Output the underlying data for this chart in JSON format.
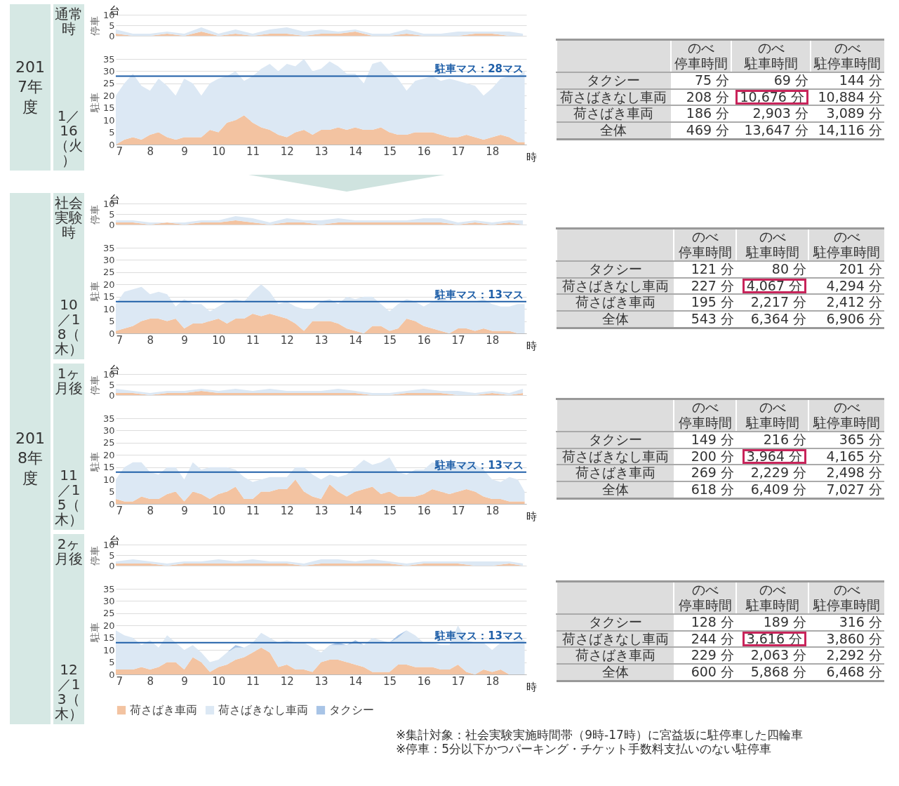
{
  "chart_data": [
    {
      "type": "area",
      "title": "台",
      "ylabel": "停車",
      "annotations": [
        "2017年度",
        "通常時",
        "1／16（火）"
      ],
      "x": [
        7,
        7.5,
        8,
        8.5,
        9,
        9.5,
        10,
        10.5,
        11,
        11.5,
        12,
        12.5,
        13,
        13.5,
        14,
        14.5,
        15,
        15.5,
        16,
        16.5,
        17,
        17.5,
        18,
        18.5,
        18.9
      ],
      "xlim": [
        7,
        19
      ],
      "ylim": [
        0,
        10
      ],
      "yticks": [
        0,
        5,
        10
      ],
      "tick_labels": "y",
      "grid": "y",
      "stacked": true,
      "series": [
        {
          "color": "#f3c3a1",
          "values": [
            1,
            0,
            0,
            1,
            0,
            2,
            0,
            1,
            0,
            1,
            1,
            0,
            1,
            1,
            2,
            0,
            0,
            1,
            0,
            0,
            0,
            1,
            1,
            0,
            0
          ]
        },
        {
          "color": "#dce8f4",
          "values": [
            2,
            1,
            1,
            1,
            1,
            2,
            1,
            2,
            1,
            2,
            3,
            2,
            2,
            1,
            1,
            1,
            1,
            2,
            1,
            1,
            2,
            1,
            1,
            2,
            1
          ]
        }
      ]
    },
    {
      "type": "area",
      "ylabel": "駐車",
      "xlabel": "時",
      "x": [
        7,
        7.25,
        7.5,
        7.75,
        8,
        8.25,
        8.5,
        8.75,
        9,
        9.25,
        9.5,
        9.75,
        10,
        10.25,
        10.5,
        10.75,
        11,
        11.25,
        11.5,
        11.75,
        12,
        12.25,
        12.5,
        12.75,
        13,
        13.25,
        13.5,
        13.75,
        14,
        14.25,
        14.5,
        14.75,
        15,
        15.25,
        15.5,
        15.75,
        16,
        16.25,
        16.5,
        16.75,
        17,
        17.25,
        17.5,
        17.75,
        18,
        18.25,
        18.5,
        18.75,
        18.95
      ],
      "xlim": [
        7,
        19
      ],
      "xticks": [
        7,
        8,
        9,
        10,
        11,
        12,
        13,
        14,
        15,
        16,
        17,
        18
      ],
      "ylim": [
        0,
        35
      ],
      "yticks": [
        0,
        5,
        10,
        15,
        20,
        25,
        30,
        35
      ],
      "grid": "y",
      "stacked": true,
      "ref_lines": [
        {
          "axis": "y",
          "value": 28,
          "label": "駐車マス：28マス",
          "color": "#1f5fa8"
        }
      ],
      "series": [
        {
          "color": "#f3c3a1",
          "values": [
            0,
            2,
            3,
            2,
            4,
            5,
            3,
            2,
            3,
            3,
            3,
            6,
            5,
            9,
            10,
            12,
            9,
            7,
            6,
            4,
            3,
            5,
            6,
            4,
            6,
            6,
            7,
            6,
            7,
            6,
            6,
            7,
            5,
            4,
            4,
            5,
            5,
            5,
            4,
            3,
            3,
            4,
            3,
            2,
            3,
            4,
            3,
            1,
            1
          ]
        },
        {
          "color": "#dce8f4",
          "values": [
            20,
            23,
            26,
            22,
            18,
            22,
            21,
            18,
            24,
            22,
            17,
            19,
            22,
            19,
            20,
            14,
            19,
            24,
            27,
            26,
            30,
            27,
            29,
            26,
            25,
            28,
            25,
            23,
            22,
            19,
            27,
            27,
            25,
            23,
            18,
            21,
            22,
            23,
            22,
            24,
            23,
            21,
            21,
            18,
            20,
            23,
            25,
            27,
            29
          ]
        }
      ]
    },
    {
      "type": "other",
      "categories": [
        "のべ停車時間",
        "のべ駐車時間",
        "のべ駐停車時間"
      ],
      "y_categories": [
        "タクシー",
        "荷さばきなし車両",
        "荷さばき車両",
        "全体"
      ],
      "cell_labels": [
        [
          "75 分",
          "69 分",
          "144 分"
        ],
        [
          "208 分",
          "10,676 分",
          "10,884 分"
        ],
        [
          "186 分",
          "2,903 分",
          "3,089 分"
        ],
        [
          "469 分",
          "13,647 分",
          "14,116 分"
        ]
      ]
    },
    {
      "type": "area",
      "title": "台",
      "ylabel": "停車",
      "annotations": [
        "2018年度",
        "社会実験時",
        "10／18（木）"
      ],
      "x": [
        7,
        7.5,
        8,
        8.5,
        9,
        9.5,
        10,
        10.5,
        11,
        11.5,
        12,
        12.5,
        13,
        13.5,
        14,
        14.5,
        15,
        15.5,
        16,
        16.5,
        17,
        17.5,
        18,
        18.5,
        18.9
      ],
      "xlim": [
        7,
        19
      ],
      "ylim": [
        0,
        10
      ],
      "yticks": [
        0,
        5,
        10
      ],
      "tick_labels": "y",
      "grid": "y",
      "stacked": true,
      "series": [
        {
          "color": "#f3c3a1",
          "values": [
            1,
            1,
            0,
            1,
            0,
            1,
            1,
            2,
            1,
            0,
            1,
            1,
            0,
            1,
            1,
            1,
            1,
            1,
            1,
            1,
            0,
            1,
            0,
            1,
            0
          ]
        },
        {
          "color": "#dce8f4",
          "values": [
            1,
            1,
            1,
            0,
            1,
            1,
            1,
            2,
            2,
            1,
            2,
            1,
            2,
            2,
            1,
            1,
            1,
            1,
            2,
            2,
            1,
            1,
            1,
            1,
            2
          ]
        }
      ]
    },
    {
      "type": "area",
      "ylabel": "駐車",
      "xlabel": "時",
      "x": [
        7,
        7.25,
        7.5,
        7.75,
        8,
        8.25,
        8.5,
        8.75,
        9,
        9.25,
        9.5,
        9.75,
        10,
        10.25,
        10.5,
        10.75,
        11,
        11.25,
        11.5,
        11.75,
        12,
        12.25,
        12.5,
        12.75,
        13,
        13.25,
        13.5,
        13.75,
        14,
        14.25,
        14.5,
        14.75,
        15,
        15.25,
        15.5,
        15.75,
        16,
        16.25,
        16.5,
        16.75,
        17,
        17.25,
        17.5,
        17.75,
        18,
        18.25,
        18.5,
        18.75,
        18.95
      ],
      "xlim": [
        7,
        19
      ],
      "xticks": [
        7,
        8,
        9,
        10,
        11,
        12,
        13,
        14,
        15,
        16,
        17,
        18
      ],
      "ylim": [
        0,
        35
      ],
      "yticks": [
        0,
        5,
        10,
        15,
        20,
        25,
        30,
        35
      ],
      "grid": "y",
      "stacked": true,
      "ref_lines": [
        {
          "axis": "y",
          "value": 13,
          "label": "駐車マス：13マス",
          "color": "#1f5fa8"
        }
      ],
      "series": [
        {
          "color": "#f3c3a1",
          "values": [
            1,
            2,
            3,
            5,
            6,
            6,
            5,
            6,
            2,
            4,
            4,
            5,
            6,
            4,
            6,
            6,
            8,
            7,
            8,
            7,
            6,
            4,
            1,
            5,
            5,
            5,
            4,
            2,
            1,
            0,
            3,
            3,
            1,
            2,
            6,
            5,
            3,
            2,
            1,
            0,
            2,
            2,
            1,
            2,
            1,
            1,
            1,
            0,
            0
          ]
        },
        {
          "color": "#dce8f4",
          "values": [
            11,
            15,
            15,
            14,
            10,
            11,
            11,
            5,
            12,
            8,
            8,
            4,
            5,
            9,
            8,
            7,
            9,
            13,
            9,
            5,
            7,
            7,
            9,
            5,
            8,
            9,
            8,
            13,
            13,
            15,
            12,
            9,
            8,
            10,
            8,
            8,
            8,
            11,
            13,
            13,
            11,
            11,
            12,
            12,
            11,
            10,
            10,
            12,
            12
          ]
        }
      ]
    },
    {
      "type": "other",
      "categories": [
        "のべ停車時間",
        "のべ駐車時間",
        "のべ駐停車時間"
      ],
      "y_categories": [
        "タクシー",
        "荷さばきなし車両",
        "荷さばき車両",
        "全体"
      ],
      "cell_labels": [
        [
          "121 分",
          "80 分",
          "201 分"
        ],
        [
          "227 分",
          "4,067 分",
          "4,294 分"
        ],
        [
          "195 分",
          "2,217 分",
          "2,412 分"
        ],
        [
          "543 分",
          "6,364 分",
          "6,906 分"
        ]
      ]
    },
    {
      "type": "area",
      "title": "台",
      "ylabel": "停車",
      "annotations": [
        "1ヶ月後",
        "11／15（木）"
      ],
      "x": [
        7,
        7.5,
        8,
        8.5,
        9,
        9.5,
        10,
        10.5,
        11,
        11.5,
        12,
        12.5,
        13,
        13.5,
        14,
        14.5,
        15,
        15.5,
        16,
        16.5,
        17,
        17.5,
        18,
        18.5,
        18.9
      ],
      "xlim": [
        7,
        19
      ],
      "ylim": [
        0,
        10
      ],
      "yticks": [
        0,
        5,
        10
      ],
      "tick_labels": "y",
      "grid": "y",
      "stacked": true,
      "series": [
        {
          "color": "#f3c3a1",
          "values": [
            1,
            1,
            0,
            1,
            1,
            2,
            1,
            1,
            1,
            1,
            1,
            1,
            1,
            1,
            1,
            0,
            0,
            1,
            1,
            1,
            0,
            0,
            1,
            0,
            1
          ]
        },
        {
          "color": "#dce8f4",
          "values": [
            2,
            1,
            1,
            1,
            1,
            1,
            1,
            2,
            1,
            2,
            1,
            1,
            1,
            2,
            1,
            1,
            1,
            1,
            2,
            1,
            2,
            1,
            1,
            1,
            2
          ]
        }
      ]
    },
    {
      "type": "area",
      "ylabel": "駐車",
      "xlabel": "時",
      "x": [
        7,
        7.25,
        7.5,
        7.75,
        8,
        8.25,
        8.5,
        8.75,
        9,
        9.25,
        9.5,
        9.75,
        10,
        10.25,
        10.5,
        10.75,
        11,
        11.25,
        11.5,
        11.75,
        12,
        12.25,
        12.5,
        12.75,
        13,
        13.25,
        13.5,
        13.75,
        14,
        14.25,
        14.5,
        14.75,
        15,
        15.25,
        15.5,
        15.75,
        16,
        16.25,
        16.5,
        16.75,
        17,
        17.25,
        17.5,
        17.75,
        18,
        18.25,
        18.5,
        18.75,
        18.95
      ],
      "xlim": [
        7,
        19
      ],
      "xticks": [
        7,
        8,
        9,
        10,
        11,
        12,
        13,
        14,
        15,
        16,
        17,
        18
      ],
      "ylim": [
        0,
        35
      ],
      "yticks": [
        0,
        5,
        10,
        15,
        20,
        25,
        30,
        35
      ],
      "grid": "y",
      "stacked": true,
      "ref_lines": [
        {
          "axis": "y",
          "value": 13,
          "label": "駐車マス：13マス",
          "color": "#1f5fa8"
        }
      ],
      "series": [
        {
          "color": "#f3c3a1",
          "values": [
            2,
            1,
            1,
            3,
            2,
            2,
            4,
            5,
            1,
            5,
            4,
            2,
            4,
            5,
            7,
            2,
            2,
            5,
            5,
            6,
            6,
            10,
            5,
            3,
            2,
            8,
            5,
            3,
            5,
            6,
            7,
            4,
            5,
            3,
            3,
            3,
            4,
            6,
            5,
            4,
            5,
            6,
            5,
            3,
            2,
            2,
            1,
            1,
            1
          ]
        },
        {
          "color": "#dce8f4",
          "values": [
            8,
            14,
            16,
            14,
            11,
            10,
            11,
            10,
            9,
            12,
            10,
            13,
            11,
            10,
            7,
            9,
            7,
            5,
            6,
            5,
            5,
            5,
            10,
            9,
            8,
            4,
            6,
            9,
            10,
            12,
            9,
            13,
            14,
            10,
            9,
            11,
            10,
            11,
            11,
            12,
            11,
            11,
            11,
            11,
            8,
            7,
            10,
            9,
            4
          ]
        }
      ]
    },
    {
      "type": "other",
      "categories": [
        "のべ停車時間",
        "のべ駐車時間",
        "のべ駐停車時間"
      ],
      "y_categories": [
        "タクシー",
        "荷さばきなし車両",
        "荷さばき車両",
        "全体"
      ],
      "cell_labels": [
        [
          "149 分",
          "216 分",
          "365 分"
        ],
        [
          "200 分",
          "3,964 分",
          "4,165 分"
        ],
        [
          "269 分",
          "2,229 分",
          "2,498 分"
        ],
        [
          "618 分",
          "6,409 分",
          "7,027 分"
        ]
      ]
    },
    {
      "type": "area",
      "title": "台",
      "ylabel": "停車",
      "annotations": [
        "2ヶ月後",
        "12／13（木）"
      ],
      "x": [
        7,
        7.5,
        8,
        8.5,
        9,
        9.5,
        10,
        10.5,
        11,
        11.5,
        12,
        12.5,
        13,
        13.5,
        14,
        14.5,
        15,
        15.5,
        16,
        16.5,
        17,
        17.5,
        18,
        18.5,
        18.9
      ],
      "xlim": [
        7,
        19
      ],
      "ylim": [
        0,
        10
      ],
      "yticks": [
        0,
        5,
        10
      ],
      "tick_labels": "y",
      "grid": "y",
      "stacked": true,
      "series": [
        {
          "color": "#f3c3a1",
          "values": [
            1,
            1,
            1,
            0,
            1,
            1,
            1,
            1,
            1,
            1,
            1,
            0,
            1,
            1,
            1,
            1,
            1,
            0,
            1,
            1,
            1,
            0,
            0,
            1,
            0
          ]
        },
        {
          "color": "#dce8f4",
          "values": [
            1,
            2,
            1,
            1,
            1,
            1,
            2,
            1,
            2,
            1,
            1,
            1,
            2,
            2,
            1,
            2,
            1,
            1,
            1,
            1,
            1,
            2,
            2,
            1,
            1
          ]
        }
      ]
    },
    {
      "type": "area",
      "ylabel": "駐車",
      "xlabel": "時",
      "legend": "bottom",
      "x": [
        7,
        7.25,
        7.5,
        7.75,
        8,
        8.25,
        8.5,
        8.75,
        9,
        9.25,
        9.5,
        9.75,
        10,
        10.25,
        10.5,
        10.75,
        11,
        11.25,
        11.5,
        11.75,
        12,
        12.25,
        12.5,
        12.75,
        13,
        13.25,
        13.5,
        13.75,
        14,
        14.25,
        14.5,
        14.75,
        15,
        15.25,
        15.5,
        15.75,
        16,
        16.25,
        16.5,
        16.75,
        17,
        17.25,
        17.5,
        17.75,
        18,
        18.25,
        18.5,
        18.75,
        18.95
      ],
      "xlim": [
        7,
        19
      ],
      "xticks": [
        7,
        8,
        9,
        10,
        11,
        12,
        13,
        14,
        15,
        16,
        17,
        18
      ],
      "ylim": [
        0,
        35
      ],
      "yticks": [
        0,
        5,
        10,
        15,
        20,
        25,
        30,
        35
      ],
      "grid": "y",
      "stacked": true,
      "ref_lines": [
        {
          "axis": "y",
          "value": 13,
          "label": "駐車マス：13マス",
          "color": "#1f5fa8"
        }
      ],
      "series": [
        {
          "name": "荷さばき車両",
          "color": "#f3c3a1",
          "values": [
            2,
            2,
            2,
            3,
            2,
            3,
            5,
            5,
            2,
            7,
            5,
            1,
            3,
            4,
            6,
            7,
            9,
            11,
            9,
            3,
            4,
            2,
            2,
            1,
            5,
            6,
            6,
            5,
            4,
            3,
            1,
            1,
            1,
            4,
            4,
            3,
            3,
            3,
            2,
            2,
            4,
            1,
            0,
            2,
            1,
            2,
            0,
            0,
            0
          ]
        },
        {
          "name": "荷さばきなし車両",
          "color": "#dce8f4",
          "values": [
            16,
            14,
            13,
            9,
            12,
            8,
            11,
            8,
            8,
            5,
            4,
            4,
            3,
            5,
            5,
            4,
            4,
            6,
            6,
            10,
            10,
            11,
            11,
            10,
            4,
            6,
            6,
            7,
            9,
            9,
            14,
            13,
            12,
            11,
            14,
            13,
            10,
            10,
            10,
            10,
            16,
            13,
            13,
            11,
            9,
            11,
            13,
            14,
            14
          ]
        },
        {
          "name": "タクシー",
          "color": "#a8c4e6",
          "values": [
            0,
            0,
            0,
            0,
            0,
            0,
            0,
            0,
            0,
            0,
            0,
            0,
            0,
            0,
            1,
            0,
            0,
            0,
            0,
            0,
            0,
            0,
            0,
            0,
            0,
            0,
            1,
            0,
            1,
            0,
            0,
            0,
            0,
            1,
            0,
            0,
            0,
            0,
            0,
            0,
            0,
            0,
            0,
            0,
            0,
            0,
            0,
            0,
            0
          ]
        }
      ]
    },
    {
      "type": "other",
      "categories": [
        "のべ停車時間",
        "のべ駐車時間",
        "のべ駐停車時間"
      ],
      "y_categories": [
        "タクシー",
        "荷さばきなし車両",
        "荷さばき車両",
        "全体"
      ],
      "cell_labels": [
        [
          "128 分",
          "189 分",
          "316 分"
        ],
        [
          "244 分",
          "3,616 分",
          "3,860 分"
        ],
        [
          "229 分",
          "2,063 分",
          "2,292 分"
        ],
        [
          "600 分",
          "5,868 分",
          "6,468 分"
        ]
      ],
      "annotations": [
        "※集計対象：社会実験実施時間帯（9時-17時）に宮益坂に駐停車した四輪車",
        "※停車：5分以下かつパーキング・チケット手数料支払いのない駐停車"
      ]
    }
  ]
}
